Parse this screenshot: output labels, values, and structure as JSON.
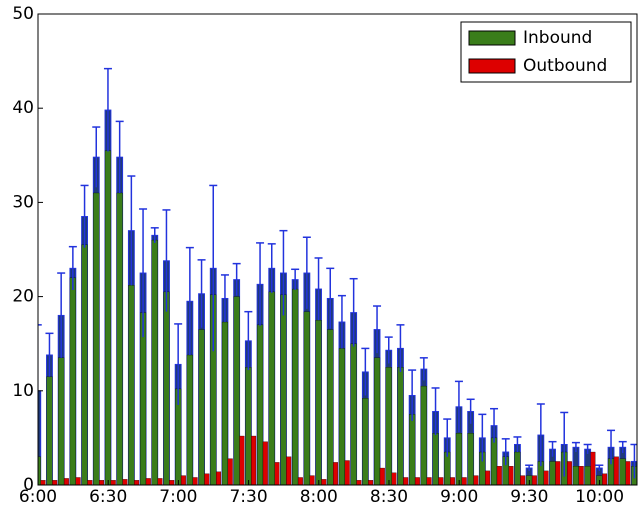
{
  "chart_data": {
    "type": "bar",
    "x": [
      360,
      365,
      370,
      375,
      380,
      385,
      390,
      395,
      400,
      405,
      410,
      415,
      420,
      425,
      430,
      435,
      440,
      445,
      450,
      455,
      460,
      465,
      470,
      475,
      480,
      485,
      490,
      495,
      500,
      505,
      510,
      515,
      520,
      525,
      530,
      535,
      540,
      545,
      550,
      555,
      560,
      565,
      570,
      575,
      580,
      585,
      590,
      595,
      600,
      605,
      610,
      615
    ],
    "series": [
      {
        "name": "Inbound",
        "color": "#3a7d1a",
        "values": [
          3,
          11.5,
          13.5,
          22,
          25.5,
          31,
          35.5,
          31,
          21.2,
          18.3,
          26,
          20.5,
          10.2,
          13.8,
          16.5,
          20.2,
          17.3,
          20,
          12.5,
          17,
          20.5,
          20.2,
          20.8,
          18.4,
          17.5,
          16.5,
          14.5,
          15,
          9.2,
          13.5,
          12.5,
          12.5,
          7.5,
          10.5,
          5.5,
          3.5,
          5.5,
          5.5,
          3.5,
          5,
          3,
          3.5,
          1,
          2.5,
          2.5,
          3.5,
          2,
          2,
          1,
          2.8,
          2.8,
          2
        ]
      },
      {
        "name": "Outbound",
        "color": "#dd0000",
        "values": [
          0.5,
          0.5,
          0.7,
          0.8,
          0.5,
          0.5,
          0.5,
          0.6,
          0.5,
          0.7,
          0.7,
          0.5,
          1,
          0.8,
          1.2,
          1.4,
          2.8,
          5.2,
          5.2,
          4.6,
          2.4,
          3,
          0.8,
          1,
          0.6,
          2.4,
          2.6,
          0.5,
          0.5,
          1.8,
          1.3,
          0.8,
          0.8,
          0.8,
          0.8,
          0.8,
          0.8,
          1,
          1.5,
          2,
          2,
          1,
          1,
          1.5,
          2.5,
          2.5,
          2,
          3.5,
          1.2,
          3,
          2.5,
          2.5
        ]
      }
    ],
    "error_bars": {
      "color": "#1f3a7a",
      "edge": "#2233dd",
      "values": [
        10,
        13.8,
        18,
        23,
        28.5,
        34.8,
        39.8,
        34.8,
        27,
        22.5,
        26.5,
        23.8,
        12.8,
        19.5,
        20.3,
        23,
        19.8,
        21.8,
        15.3,
        21.3,
        23,
        22.5,
        21.8,
        22.5,
        20.8,
        19.8,
        17.3,
        18.3,
        12,
        16.5,
        14.3,
        14.5,
        9.5,
        12.3,
        7.8,
        5,
        8.3,
        7.8,
        5,
        6.3,
        3.5,
        4.3,
        1.8,
        5.3,
        3.8,
        4.3,
        4,
        3.8,
        1.8,
        4,
        4,
        2.5
      ],
      "errors": [
        7,
        2.3,
        4.5,
        2.3,
        3.3,
        3.2,
        4.4,
        3.8,
        5.8,
        6.8,
        0.8,
        5.4,
        4.3,
        5.7,
        3.6,
        8.8,
        2.5,
        1.7,
        3.1,
        4.4,
        2.6,
        4.5,
        1.1,
        3.8,
        3.3,
        3.2,
        2.8,
        3.6,
        2.5,
        2.5,
        1.4,
        2.5,
        2.7,
        1.2,
        2.5,
        2,
        2.7,
        1.3,
        2.5,
        1.8,
        1.4,
        0.8,
        0.3,
        3.3,
        0.8,
        3.4,
        0.5,
        0.5,
        0.3,
        1.8,
        0.6,
        1.8
      ]
    },
    "xlim": [
      360,
      616
    ],
    "xticks": [
      {
        "value": 360,
        "label": "6:00"
      },
      {
        "value": 390,
        "label": "6:30"
      },
      {
        "value": 420,
        "label": "7:00"
      },
      {
        "value": 450,
        "label": "7:30"
      },
      {
        "value": 480,
        "label": "8:00"
      },
      {
        "value": 510,
        "label": "8:30"
      },
      {
        "value": 540,
        "label": "9:00"
      },
      {
        "value": 570,
        "label": "9:30"
      },
      {
        "value": 600,
        "label": "10:00"
      }
    ],
    "ylim": [
      0,
      50
    ],
    "yticks": [
      0,
      10,
      20,
      30,
      40,
      50
    ],
    "legend": "upper right"
  }
}
